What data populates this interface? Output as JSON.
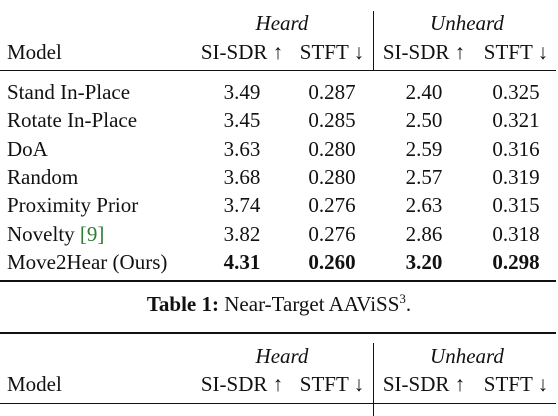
{
  "table1": {
    "group_headers": [
      "Heard",
      "Unheard"
    ],
    "col_headers": [
      "Model",
      "SI-SDR ↑",
      "STFT ↓",
      "SI-SDR ↑",
      "STFT ↓"
    ],
    "rows": [
      {
        "model": "Stand In-Place",
        "heard_sisdr": "3.49",
        "heard_stft": "0.287",
        "unheard_sisdr": "2.40",
        "unheard_stft": "0.325"
      },
      {
        "model": "Rotate In-Place",
        "heard_sisdr": "3.45",
        "heard_stft": "0.285",
        "unheard_sisdr": "2.50",
        "unheard_stft": "0.321"
      },
      {
        "model": "DoA",
        "heard_sisdr": "3.63",
        "heard_stft": "0.280",
        "unheard_sisdr": "2.59",
        "unheard_stft": "0.316"
      },
      {
        "model": "Random",
        "heard_sisdr": "3.68",
        "heard_stft": "0.280",
        "unheard_sisdr": "2.57",
        "unheard_stft": "0.319"
      },
      {
        "model": "Proximity Prior",
        "heard_sisdr": "3.74",
        "heard_stft": "0.276",
        "unheard_sisdr": "2.63",
        "unheard_stft": "0.315"
      },
      {
        "model": "Novelty",
        "citation": "[9]",
        "heard_sisdr": "3.82",
        "heard_stft": "0.276",
        "unheard_sisdr": "2.86",
        "unheard_stft": "0.318"
      },
      {
        "model": "Move2Hear (Ours)",
        "heard_sisdr": "4.31",
        "heard_stft": "0.260",
        "unheard_sisdr": "3.20",
        "unheard_stft": "0.298",
        "bold": true
      }
    ],
    "caption": {
      "label": "Table 1:",
      "text": "Near-Target AAViSS",
      "superscript": "3",
      "end": "."
    }
  },
  "table2": {
    "group_headers": [
      "Heard",
      "Unheard"
    ],
    "col_headers": [
      "Model",
      "SI-SDR ↑",
      "STFT ↓",
      "SI-SDR ↑",
      "STFT ↓"
    ]
  },
  "colors": {
    "text": "#111111",
    "citation": "#2e7d32"
  }
}
